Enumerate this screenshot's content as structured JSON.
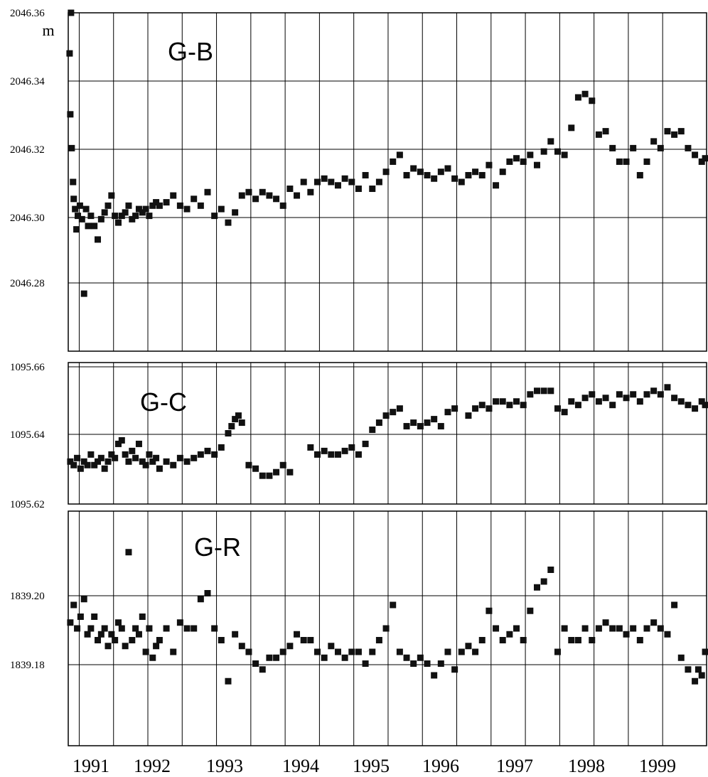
{
  "x_axis": {
    "tick_labels": [
      "1991",
      "1992",
      "1993",
      "1994",
      "1995",
      "1996",
      "1997",
      "1998",
      "1999"
    ]
  },
  "chart_data": [
    {
      "type": "scatter",
      "title": "G-B",
      "ylabel": "m",
      "ylim": [
        2046.26,
        2046.36
      ],
      "yticks": [
        "2046.36",
        "2046.34",
        "2046.32",
        "2046.30",
        "2046.28"
      ],
      "xlim": [
        1990.67,
        1999.97
      ],
      "grid": true,
      "series": [
        {
          "x": [
            1990.69,
            1990.7,
            1990.71,
            1990.72,
            1990.74,
            1990.75,
            1990.77,
            1990.79,
            1990.81,
            1990.84,
            1990.87,
            1990.9,
            1990.93,
            1990.96,
            1991.0,
            1991.05,
            1991.1,
            1991.15,
            1991.2,
            1991.25,
            1991.3,
            1991.35,
            1991.4,
            1991.45,
            1991.5,
            1991.55,
            1991.6,
            1991.65,
            1991.7,
            1991.75,
            1991.8,
            1991.85,
            1991.9,
            1991.95,
            1992.0,
            1992.1,
            1992.2,
            1992.3,
            1992.4,
            1992.5,
            1992.6,
            1992.7,
            1992.8,
            1992.9,
            1993.0,
            1993.1,
            1993.2,
            1993.3,
            1993.4,
            1993.5,
            1993.6,
            1993.7,
            1993.8,
            1993.9,
            1994.0,
            1994.1,
            1994.2,
            1994.3,
            1994.4,
            1994.5,
            1994.6,
            1994.7,
            1994.8,
            1994.9,
            1995.0,
            1995.1,
            1995.2,
            1995.3,
            1995.4,
            1995.5,
            1995.6,
            1995.7,
            1995.8,
            1995.9,
            1996.0,
            1996.1,
            1996.2,
            1996.3,
            1996.4,
            1996.5,
            1996.6,
            1996.7,
            1996.8,
            1996.9,
            1997.0,
            1997.1,
            1997.2,
            1997.3,
            1997.4,
            1997.5,
            1997.6,
            1997.7,
            1997.8,
            1997.9,
            1998.0,
            1998.1,
            1998.2,
            1998.3,
            1998.4,
            1998.5,
            1998.6,
            1998.7,
            1998.8,
            1998.9,
            1999.0,
            1999.1,
            1999.2,
            1999.3,
            1999.4,
            1999.5,
            1999.6,
            1999.7,
            1999.8,
            1999.9,
            1999.95
          ],
          "y": [
            2046.348,
            2046.33,
            2046.36,
            2046.32,
            2046.31,
            2046.305,
            2046.302,
            2046.296,
            2046.3,
            2046.303,
            2046.299,
            2046.277,
            2046.302,
            2046.297,
            2046.3,
            2046.297,
            2046.293,
            2046.299,
            2046.301,
            2046.303,
            2046.306,
            2046.3,
            2046.298,
            2046.3,
            2046.301,
            2046.303,
            2046.299,
            2046.3,
            2046.302,
            2046.301,
            2046.302,
            2046.3,
            2046.303,
            2046.304,
            2046.303,
            2046.304,
            2046.306,
            2046.303,
            2046.302,
            2046.305,
            2046.303,
            2046.307,
            2046.3,
            2046.302,
            2046.298,
            2046.301,
            2046.306,
            2046.307,
            2046.305,
            2046.307,
            2046.306,
            2046.305,
            2046.303,
            2046.308,
            2046.306,
            2046.31,
            2046.307,
            2046.31,
            2046.311,
            2046.31,
            2046.309,
            2046.311,
            2046.31,
            2046.308,
            2046.312,
            2046.308,
            2046.31,
            2046.313,
            2046.316,
            2046.318,
            2046.312,
            2046.314,
            2046.313,
            2046.312,
            2046.311,
            2046.313,
            2046.314,
            2046.311,
            2046.31,
            2046.312,
            2046.313,
            2046.312,
            2046.315,
            2046.309,
            2046.313,
            2046.316,
            2046.317,
            2046.316,
            2046.318,
            2046.315,
            2046.319,
            2046.322,
            2046.319,
            2046.318,
            2046.326,
            2046.335,
            2046.336,
            2046.334,
            2046.324,
            2046.325,
            2046.32,
            2046.316,
            2046.316,
            2046.32,
            2046.312,
            2046.316,
            2046.322,
            2046.32,
            2046.325,
            2046.324,
            2046.325,
            2046.32,
            2046.318,
            2046.316,
            2046.317
          ]
        }
      ]
    },
    {
      "type": "scatter",
      "title": "G-C",
      "ylim": [
        1095.62,
        1095.66
      ],
      "yticks": [
        "1095.66",
        "1095.64",
        "1095.62"
      ],
      "xlim": [
        1990.67,
        1999.97
      ],
      "grid": true,
      "series": [
        {
          "x": [
            1990.7,
            1990.75,
            1990.8,
            1990.85,
            1990.9,
            1990.95,
            1991.0,
            1991.05,
            1991.1,
            1991.15,
            1991.2,
            1991.25,
            1991.3,
            1991.35,
            1991.4,
            1991.45,
            1991.5,
            1991.55,
            1991.6,
            1991.65,
            1991.7,
            1991.75,
            1991.8,
            1991.85,
            1991.9,
            1991.95,
            1992.0,
            1992.1,
            1992.2,
            1992.3,
            1992.4,
            1992.5,
            1992.6,
            1992.7,
            1992.8,
            1992.9,
            1993.0,
            1993.05,
            1993.1,
            1993.15,
            1993.2,
            1993.3,
            1993.4,
            1993.5,
            1993.6,
            1993.7,
            1993.8,
            1993.9,
            1994.2,
            1994.3,
            1994.4,
            1994.5,
            1994.6,
            1994.7,
            1994.8,
            1994.9,
            1995.0,
            1995.1,
            1995.2,
            1995.3,
            1995.4,
            1995.5,
            1995.6,
            1995.7,
            1995.8,
            1995.9,
            1996.0,
            1996.1,
            1996.2,
            1996.3,
            1996.5,
            1996.6,
            1996.7,
            1996.8,
            1996.9,
            1997.0,
            1997.1,
            1997.2,
            1997.3,
            1997.4,
            1997.5,
            1997.6,
            1997.7,
            1997.8,
            1997.9,
            1998.0,
            1998.1,
            1998.2,
            1998.3,
            1998.4,
            1998.5,
            1998.6,
            1998.7,
            1998.8,
            1998.9,
            1999.0,
            1999.1,
            1999.2,
            1999.3,
            1999.4,
            1999.5,
            1999.6,
            1999.7,
            1999.8,
            1999.9,
            1999.95
          ],
          "y": [
            1095.632,
            1095.631,
            1095.633,
            1095.63,
            1095.632,
            1095.631,
            1095.634,
            1095.631,
            1095.632,
            1095.633,
            1095.63,
            1095.632,
            1095.634,
            1095.633,
            1095.637,
            1095.638,
            1095.634,
            1095.632,
            1095.635,
            1095.633,
            1095.637,
            1095.632,
            1095.631,
            1095.634,
            1095.632,
            1095.633,
            1095.63,
            1095.632,
            1095.631,
            1095.633,
            1095.632,
            1095.633,
            1095.634,
            1095.635,
            1095.634,
            1095.636,
            1095.64,
            1095.642,
            1095.644,
            1095.645,
            1095.643,
            1095.631,
            1095.63,
            1095.628,
            1095.628,
            1095.629,
            1095.631,
            1095.629,
            1095.636,
            1095.634,
            1095.635,
            1095.634,
            1095.634,
            1095.635,
            1095.636,
            1095.634,
            1095.637,
            1095.641,
            1095.643,
            1095.645,
            1095.646,
            1095.647,
            1095.642,
            1095.643,
            1095.642,
            1095.643,
            1095.644,
            1095.642,
            1095.646,
            1095.647,
            1095.645,
            1095.647,
            1095.648,
            1095.647,
            1095.649,
            1095.649,
            1095.648,
            1095.649,
            1095.648,
            1095.651,
            1095.652,
            1095.652,
            1095.652,
            1095.647,
            1095.646,
            1095.649,
            1095.648,
            1095.65,
            1095.651,
            1095.649,
            1095.65,
            1095.648,
            1095.651,
            1095.65,
            1095.651,
            1095.649,
            1095.651,
            1095.652,
            1095.651,
            1095.653,
            1095.65,
            1095.649,
            1095.648,
            1095.647,
            1095.649,
            1095.648
          ]
        }
      ]
    },
    {
      "type": "scatter",
      "title": "G-R",
      "ylim": [
        1839.17,
        1839.21
      ],
      "yticks": [
        "1839.20",
        "1839.18"
      ],
      "xlim": [
        1990.67,
        1999.97
      ],
      "grid": true,
      "series": [
        {
          "x": [
            1990.7,
            1990.75,
            1990.8,
            1990.85,
            1990.9,
            1990.95,
            1991.0,
            1991.05,
            1991.1,
            1991.15,
            1991.2,
            1991.25,
            1991.3,
            1991.35,
            1991.4,
            1991.45,
            1991.5,
            1991.55,
            1991.6,
            1991.65,
            1991.7,
            1991.75,
            1991.8,
            1991.85,
            1991.9,
            1991.95,
            1992.0,
            1992.1,
            1992.2,
            1992.3,
            1992.4,
            1992.5,
            1992.6,
            1992.7,
            1992.8,
            1992.9,
            1993.0,
            1993.1,
            1993.2,
            1993.3,
            1993.4,
            1993.5,
            1993.6,
            1993.7,
            1993.8,
            1993.9,
            1994.0,
            1994.1,
            1994.2,
            1994.3,
            1994.4,
            1994.5,
            1994.6,
            1994.7,
            1994.8,
            1994.9,
            1995.0,
            1995.1,
            1995.2,
            1995.3,
            1995.4,
            1995.5,
            1995.6,
            1995.7,
            1995.8,
            1995.9,
            1996.0,
            1996.1,
            1996.2,
            1996.3,
            1996.4,
            1996.5,
            1996.6,
            1996.7,
            1996.8,
            1996.9,
            1997.0,
            1997.1,
            1997.2,
            1997.3,
            1997.4,
            1997.5,
            1997.6,
            1997.7,
            1997.8,
            1997.9,
            1998.0,
            1998.1,
            1998.2,
            1998.3,
            1998.4,
            1998.5,
            1998.6,
            1998.7,
            1998.8,
            1998.9,
            1999.0,
            1999.1,
            1999.2,
            1999.3,
            1999.4,
            1999.5,
            1999.6,
            1999.7,
            1999.8,
            1999.85,
            1999.9,
            1999.95
          ],
          "y": [
            1839.191,
            1839.194,
            1839.19,
            1839.192,
            1839.195,
            1839.189,
            1839.19,
            1839.192,
            1839.188,
            1839.189,
            1839.19,
            1839.187,
            1839.189,
            1839.188,
            1839.191,
            1839.19,
            1839.187,
            1839.203,
            1839.188,
            1839.19,
            1839.189,
            1839.192,
            1839.186,
            1839.19,
            1839.185,
            1839.187,
            1839.188,
            1839.19,
            1839.186,
            1839.191,
            1839.19,
            1839.19,
            1839.195,
            1839.196,
            1839.19,
            1839.188,
            1839.181,
            1839.189,
            1839.187,
            1839.186,
            1839.184,
            1839.183,
            1839.185,
            1839.185,
            1839.186,
            1839.187,
            1839.189,
            1839.188,
            1839.188,
            1839.186,
            1839.185,
            1839.187,
            1839.186,
            1839.185,
            1839.186,
            1839.186,
            1839.184,
            1839.186,
            1839.188,
            1839.19,
            1839.194,
            1839.186,
            1839.185,
            1839.184,
            1839.185,
            1839.184,
            1839.182,
            1839.184,
            1839.186,
            1839.183,
            1839.186,
            1839.187,
            1839.186,
            1839.188,
            1839.193,
            1839.19,
            1839.188,
            1839.189,
            1839.19,
            1839.188,
            1839.193,
            1839.197,
            1839.198,
            1839.2,
            1839.186,
            1839.19,
            1839.188,
            1839.188,
            1839.19,
            1839.188,
            1839.19,
            1839.191,
            1839.19,
            1839.19,
            1839.189,
            1839.19,
            1839.188,
            1839.19,
            1839.191,
            1839.19,
            1839.189,
            1839.194,
            1839.185,
            1839.183,
            1839.181,
            1839.183,
            1839.182,
            1839.186
          ]
        }
      ]
    }
  ]
}
